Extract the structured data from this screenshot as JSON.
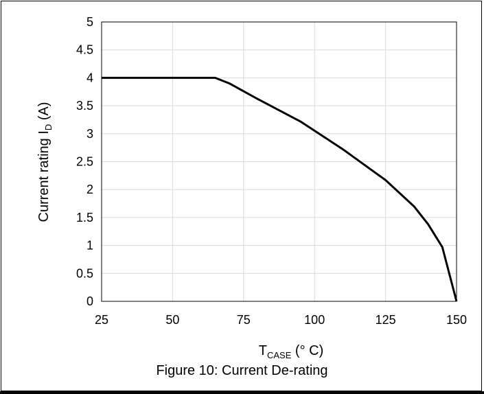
{
  "caption": "Figure 10: Current De-rating",
  "chart_data": {
    "type": "line",
    "xlabel": {
      "main": "T",
      "sub": "CASE",
      "rest": " (° C)"
    },
    "ylabel": {
      "main": "Current rating I",
      "sub": "D",
      "rest": " (A)"
    },
    "xlim": [
      25,
      150
    ],
    "ylim": [
      0,
      5
    ],
    "xticks": [
      "25",
      "50",
      "75",
      "100",
      "125",
      "150"
    ],
    "yticks": [
      "0",
      "0.5",
      "1",
      "1.5",
      "2",
      "2.5",
      "3",
      "3.5",
      "4",
      "4.5",
      "5"
    ],
    "grid": true,
    "legend": "none",
    "colors": {
      "line": "#000000",
      "grid": "#d9d9d9",
      "axes": "#000000"
    },
    "series": [
      {
        "x": [
          25,
          65,
          70,
          80,
          95,
          110,
          125,
          135,
          140,
          145,
          150
        ],
        "y": [
          4,
          4,
          3.9,
          3.62,
          3.22,
          2.72,
          2.17,
          1.7,
          1.38,
          0.97,
          0
        ]
      }
    ]
  }
}
